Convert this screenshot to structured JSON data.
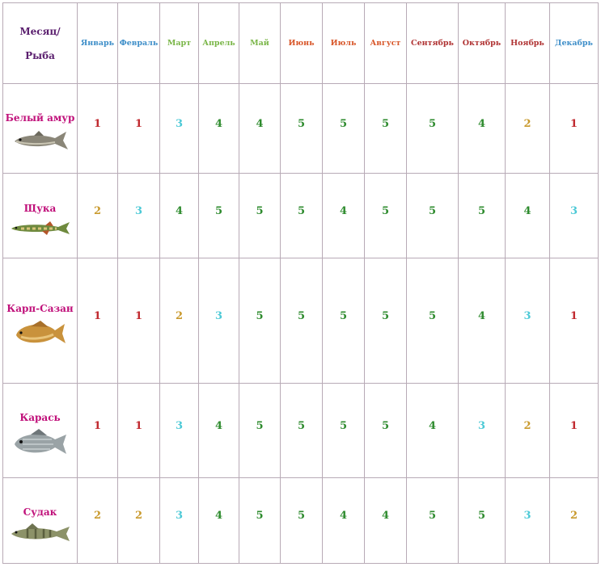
{
  "header": {
    "corner_line1": "Месяц/",
    "corner_line2": "Рыба",
    "months": [
      {
        "label": "Январь",
        "color": "#3f8fc9"
      },
      {
        "label": "Февраль",
        "color": "#3f8fc9"
      },
      {
        "label": "Март",
        "color": "#7ab648"
      },
      {
        "label": "Апрель",
        "color": "#7ab648"
      },
      {
        "label": "Май",
        "color": "#7ab648"
      },
      {
        "label": "Июнь",
        "color": "#d8572a"
      },
      {
        "label": "Июль",
        "color": "#d8572a"
      },
      {
        "label": "Август",
        "color": "#d8572a"
      },
      {
        "label": "Сентябрь",
        "color": "#b03434"
      },
      {
        "label": "Октябрь",
        "color": "#b03434"
      },
      {
        "label": "Ноябрь",
        "color": "#b03434"
      },
      {
        "label": "Декабрь",
        "color": "#3f8fc9"
      }
    ]
  },
  "score_colors": {
    "1": "#c0282e",
    "2": "#c99a2e",
    "3": "#4cc9d6",
    "4": "#2e8b2e",
    "5": "#2e8b2e"
  },
  "fish": [
    {
      "name": "Белый амур",
      "icon": "grass-carp-icon",
      "scores": [
        1,
        1,
        3,
        4,
        4,
        5,
        5,
        5,
        5,
        4,
        2,
        1
      ]
    },
    {
      "name": "Щука",
      "icon": "pike-icon",
      "scores": [
        2,
        3,
        4,
        5,
        5,
        5,
        4,
        5,
        5,
        5,
        4,
        3
      ]
    },
    {
      "name": "Карп-Сазан",
      "icon": "carp-icon",
      "scores": [
        1,
        1,
        2,
        3,
        5,
        5,
        5,
        5,
        5,
        4,
        3,
        1
      ]
    },
    {
      "name": "Карась",
      "icon": "crucian-carp-icon",
      "scores": [
        1,
        1,
        3,
        4,
        5,
        5,
        5,
        5,
        4,
        3,
        2,
        1
      ]
    },
    {
      "name": "Судак",
      "icon": "zander-icon",
      "scores": [
        2,
        2,
        3,
        4,
        5,
        5,
        4,
        4,
        5,
        5,
        3,
        2
      ]
    }
  ]
}
